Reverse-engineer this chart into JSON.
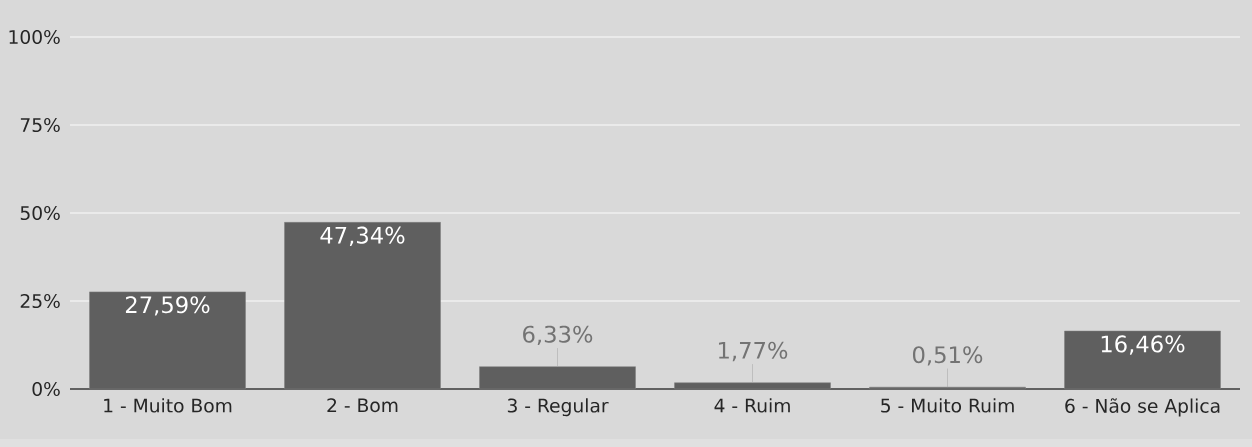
{
  "chart_data": {
    "type": "bar",
    "categories": [
      "1 - Muito Bom",
      "2 - Bom",
      "3 - Regular",
      "4 - Ruim",
      "5 - Muito Ruim",
      "6 - Não se Aplica"
    ],
    "values": [
      27.59,
      47.34,
      6.33,
      1.77,
      0.51,
      16.46
    ],
    "value_labels": [
      "27,59%",
      "47,34%",
      "6,33%",
      "1,77%",
      "0,51%",
      "16,46%"
    ],
    "color": "#5f5f5f",
    "ylim": [
      0,
      100
    ],
    "yticks": [
      {
        "value": 0,
        "label": "0%"
      },
      {
        "value": 25,
        "label": "25%"
      },
      {
        "value": 50,
        "label": "50%"
      },
      {
        "value": 75,
        "label": "75%"
      },
      {
        "value": 100,
        "label": "100%"
      }
    ],
    "grid": "y"
  }
}
